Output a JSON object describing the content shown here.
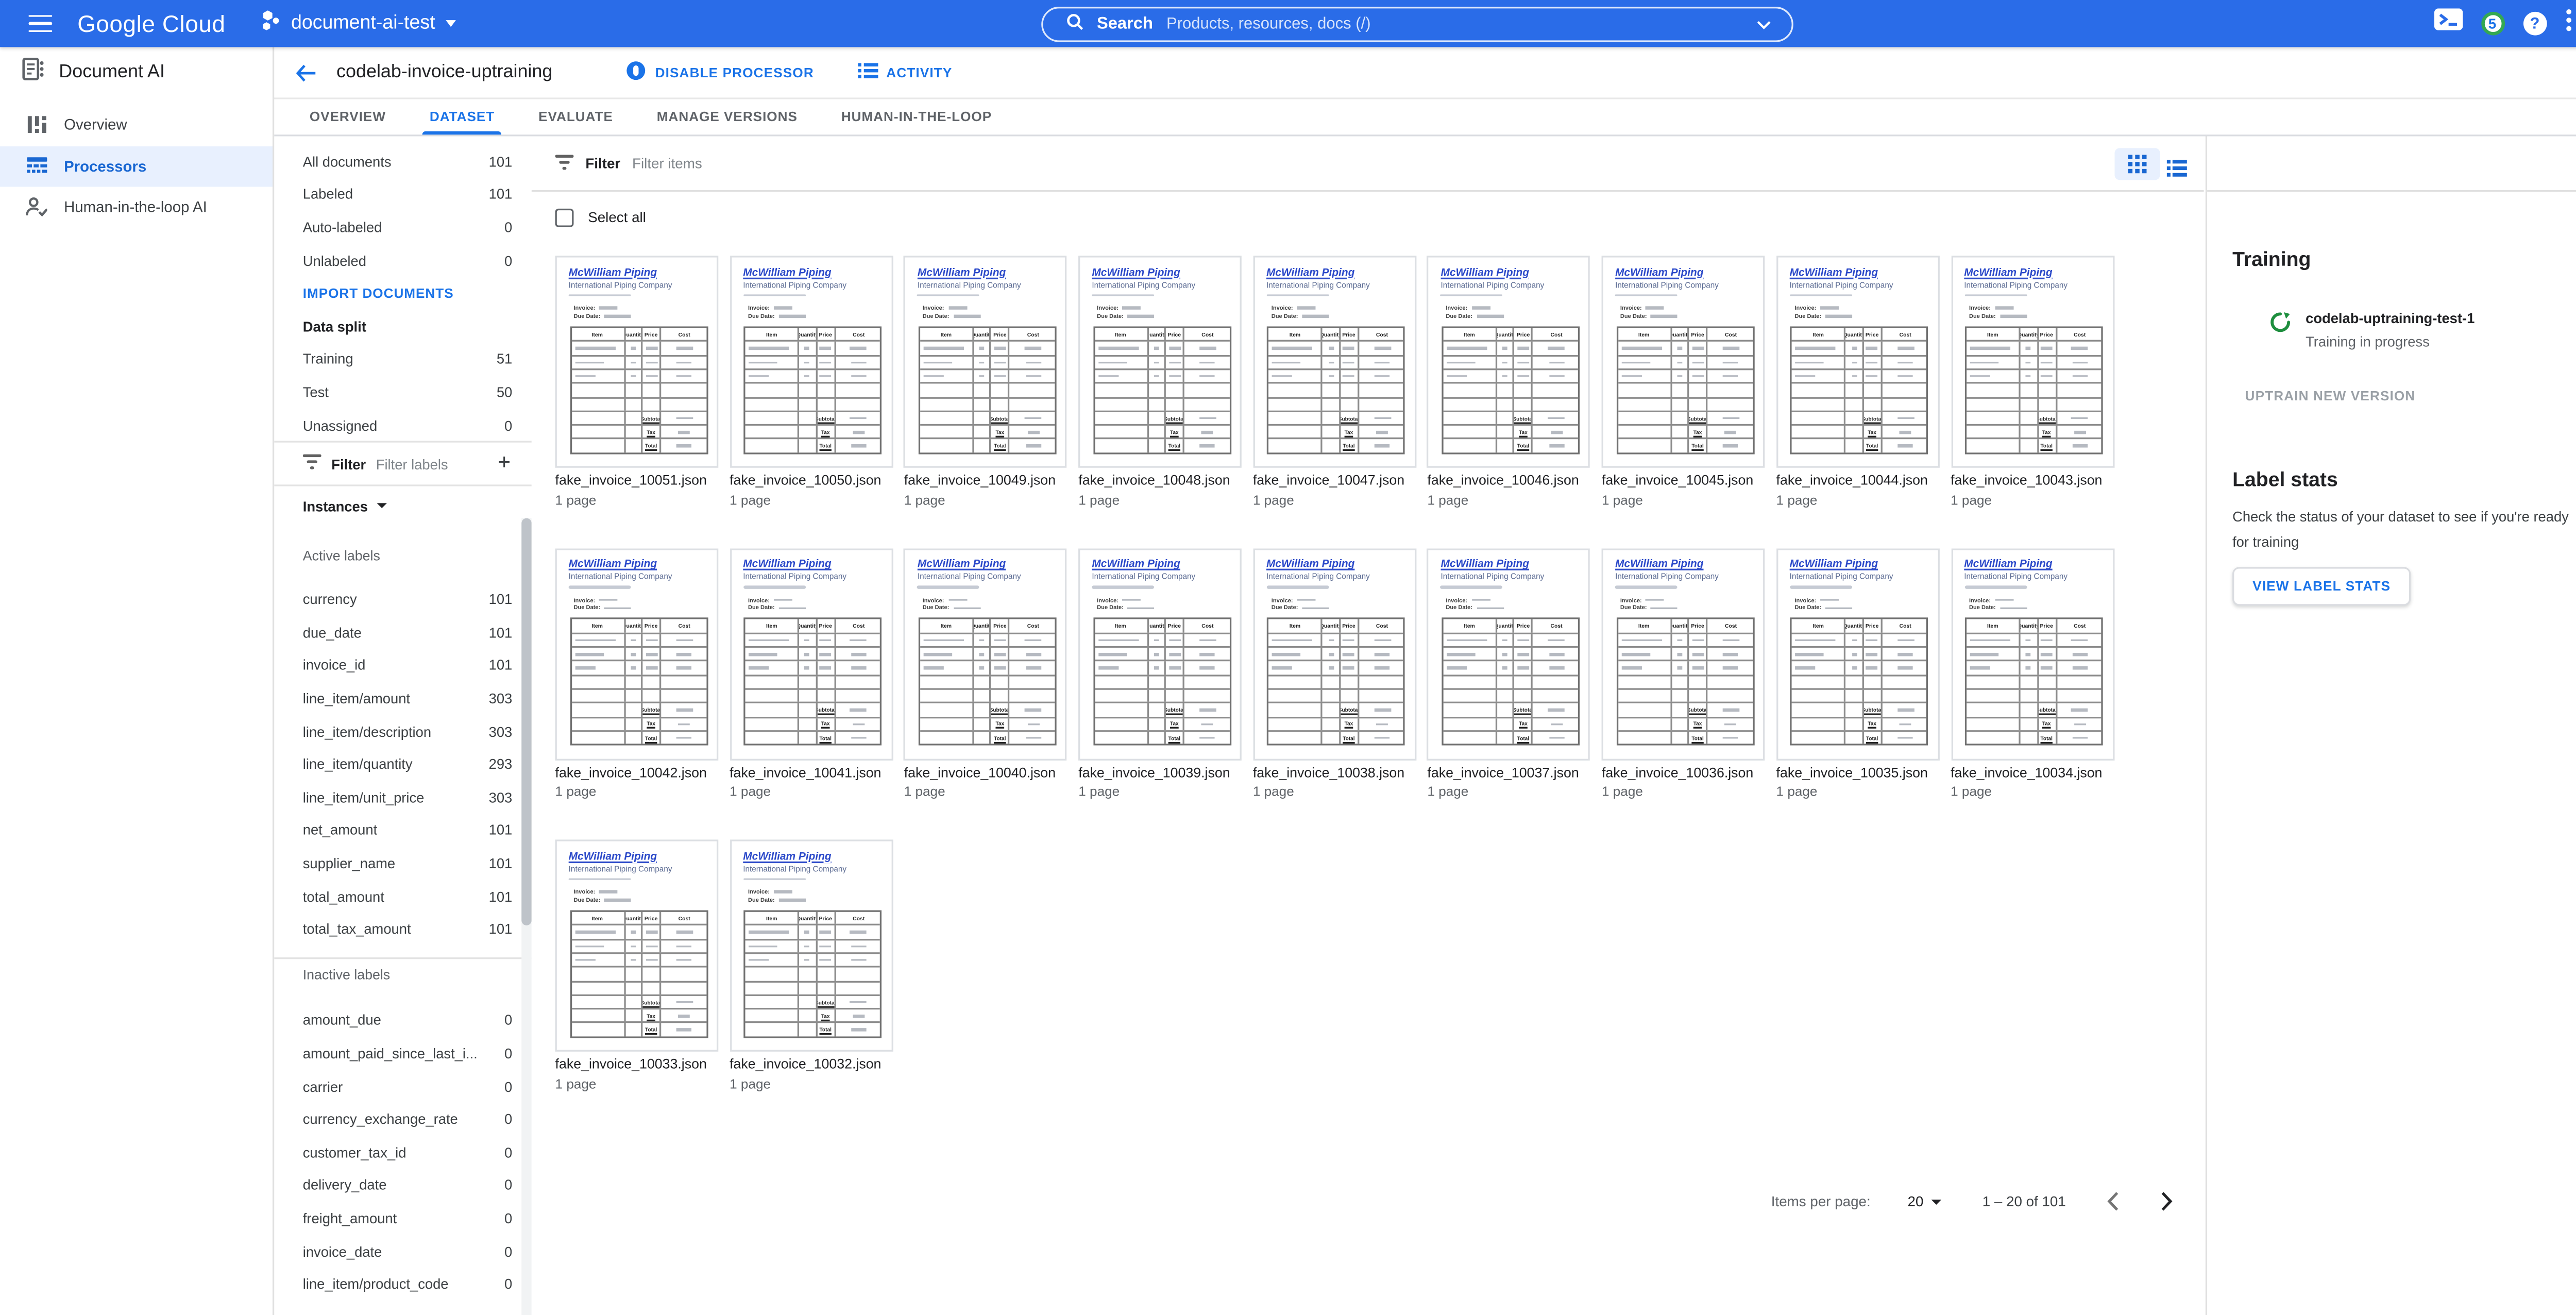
{
  "topbar": {
    "logo": "Google Cloud",
    "project": "document-ai-test",
    "search_label": "Search",
    "search_placeholder": "Products, resources, docs (/)",
    "notifications": "5"
  },
  "app_header": {
    "product": "Document AI",
    "title": "codelab-invoice-uptraining",
    "actions": [
      {
        "label": "DISABLE PROCESSOR"
      },
      {
        "label": "ACTIVITY"
      }
    ]
  },
  "tabs": [
    {
      "label": "OVERVIEW",
      "active": false
    },
    {
      "label": "DATASET",
      "active": true
    },
    {
      "label": "EVALUATE",
      "active": false
    },
    {
      "label": "MANAGE VERSIONS",
      "active": false
    },
    {
      "label": "HUMAN-IN-THE-LOOP",
      "active": false
    }
  ],
  "nav": [
    {
      "label": "Overview",
      "icon": "overview-icon",
      "active": false
    },
    {
      "label": "Processors",
      "icon": "processors-icon",
      "active": true
    },
    {
      "label": "Human-in-the-loop AI",
      "icon": "human-in-the-loop-icon",
      "active": false
    }
  ],
  "dataset_panel": {
    "counts": [
      {
        "label": "All documents",
        "value": "101"
      },
      {
        "label": "Labeled",
        "value": "101"
      },
      {
        "label": "Auto-labeled",
        "value": "0"
      },
      {
        "label": "Unlabeled",
        "value": "0"
      }
    ],
    "import_button": "IMPORT DOCUMENTS",
    "data_split_title": "Data split",
    "data_split": [
      {
        "label": "Training",
        "value": "51"
      },
      {
        "label": "Test",
        "value": "50"
      },
      {
        "label": "Unassigned",
        "value": "0"
      }
    ],
    "filter_label": "Filter",
    "filter_placeholder": "Filter labels",
    "add_button": "+",
    "instances_label": "Instances",
    "active_labels_title": "Active labels",
    "active_labels": [
      {
        "label": "currency",
        "value": "101"
      },
      {
        "label": "due_date",
        "value": "101"
      },
      {
        "label": "invoice_id",
        "value": "101"
      },
      {
        "label": "line_item/amount",
        "value": "303"
      },
      {
        "label": "line_item/description",
        "value": "303"
      },
      {
        "label": "line_item/quantity",
        "value": "293"
      },
      {
        "label": "line_item/unit_price",
        "value": "303"
      },
      {
        "label": "net_amount",
        "value": "101"
      },
      {
        "label": "supplier_name",
        "value": "101"
      },
      {
        "label": "total_amount",
        "value": "101"
      },
      {
        "label": "total_tax_amount",
        "value": "101"
      }
    ],
    "inactive_labels_title": "Inactive labels",
    "inactive_labels": [
      {
        "label": "amount_due",
        "value": "0"
      },
      {
        "label": "amount_paid_since_last_i...",
        "value": "0"
      },
      {
        "label": "carrier",
        "value": "0"
      },
      {
        "label": "currency_exchange_rate",
        "value": "0"
      },
      {
        "label": "customer_tax_id",
        "value": "0"
      },
      {
        "label": "delivery_date",
        "value": "0"
      },
      {
        "label": "freight_amount",
        "value": "0"
      },
      {
        "label": "invoice_date",
        "value": "0"
      },
      {
        "label": "line_item/product_code",
        "value": "0"
      }
    ]
  },
  "main": {
    "filter_label": "Filter",
    "filter_placeholder": "Filter items",
    "select_all": "Select all",
    "documents": [
      {
        "name": "fake_invoice_10051.json",
        "pages": "1 page"
      },
      {
        "name": "fake_invoice_10050.json",
        "pages": "1 page"
      },
      {
        "name": "fake_invoice_10049.json",
        "pages": "1 page"
      },
      {
        "name": "fake_invoice_10048.json",
        "pages": "1 page"
      },
      {
        "name": "fake_invoice_10047.json",
        "pages": "1 page"
      },
      {
        "name": "fake_invoice_10046.json",
        "pages": "1 page"
      },
      {
        "name": "fake_invoice_10045.json",
        "pages": "1 page"
      },
      {
        "name": "fake_invoice_10044.json",
        "pages": "1 page"
      },
      {
        "name": "fake_invoice_10043.json",
        "pages": "1 page"
      },
      {
        "name": "fake_invoice_10042.json",
        "pages": "1 page"
      },
      {
        "name": "fake_invoice_10041.json",
        "pages": "1 page"
      },
      {
        "name": "fake_invoice_10040.json",
        "pages": "1 page"
      },
      {
        "name": "fake_invoice_10039.json",
        "pages": "1 page"
      },
      {
        "name": "fake_invoice_10038.json",
        "pages": "1 page"
      },
      {
        "name": "fake_invoice_10037.json",
        "pages": "1 page"
      },
      {
        "name": "fake_invoice_10036.json",
        "pages": "1 page"
      },
      {
        "name": "fake_invoice_10035.json",
        "pages": "1 page"
      },
      {
        "name": "fake_invoice_10034.json",
        "pages": "1 page"
      },
      {
        "name": "fake_invoice_10033.json",
        "pages": "1 page"
      },
      {
        "name": "fake_invoice_10032.json",
        "pages": "1 page"
      }
    ],
    "pagination": {
      "label": "Items per page:",
      "size": "20",
      "range": "1 – 20 of 101"
    }
  },
  "invoice_thumbnail": {
    "company": "McWilliam Piping",
    "subtitle": "International Piping Company",
    "invoice_label": "Invoice:",
    "due_date_label": "Due Date:",
    "table_headers": [
      "Item",
      "Quantity",
      "Price",
      "Cost"
    ],
    "summary_labels": [
      "Subtotal",
      "Tax",
      "Total"
    ]
  },
  "training_panel": {
    "title": "Training",
    "version": "codelab-uptraining-test-1",
    "status": "Training in progress",
    "uptrain_button": "UPTRAIN NEW VERSION"
  },
  "label_stats_panel": {
    "title": "Label stats",
    "description": "Check the status of your dataset to see if you're ready for training",
    "button": "VIEW LABEL STATS"
  },
  "colors": {
    "header_blue": "#2a6ce8",
    "accent_blue": "#1a73e8",
    "selected_nav_bg": "#e8f0fe",
    "selected_nav_text": "#1967d2",
    "training_green": "#1e8e3e",
    "notification_ring_green": "#34a853",
    "invoice_brand_blue": "#2b49c9"
  }
}
